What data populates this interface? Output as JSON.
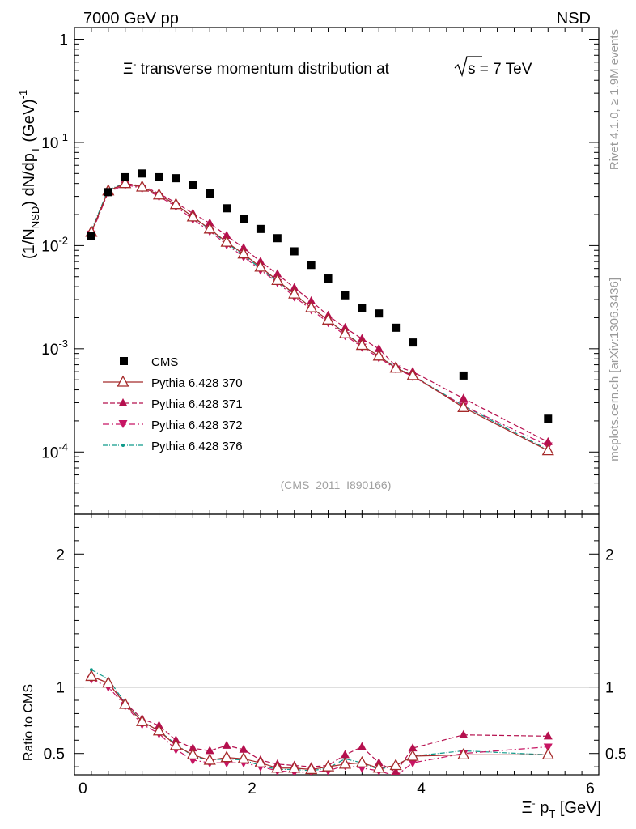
{
  "header": {
    "energy_label": "7000 GeV pp",
    "process_label": "NSD",
    "side_text_top": "Rivet 4.1.0, ≥ 1.9M events",
    "side_text_bottom": "mcplots.cern.ch [arXiv:1306.3436]"
  },
  "chart_data": {
    "type": "scatter",
    "title": {
      "part1": "Ξ",
      "part1_sup": "-",
      "part2": " transverse momentum distribution at",
      "sqrt_s": "s",
      "part3": " = 7 TeV"
    },
    "analysis_tag": "(CMS_2011_I890166)",
    "xlabel": {
      "main": "Ξ",
      "sup": "-",
      "p": " p",
      "sub": "T",
      "unit": " [GeV]"
    },
    "ylabel_main": {
      "p1": "(1/N",
      "sub1": "NSD",
      "p2": ") dN/dp",
      "sub2": "T",
      "p3": " (GeV)",
      "sup": "-1"
    },
    "ylabel_ratio": "Ratio to CMS",
    "xlim": [
      -0.1,
      6.1
    ],
    "ylim_main": [
      2.5e-05,
      1.3
    ],
    "ylim_ratio": [
      0.34,
      2.3
    ],
    "x_ticks": [
      "0",
      "2",
      "4",
      "6"
    ],
    "y_ticks_main": [
      {
        "v": 1,
        "b": "1",
        "e": ""
      },
      {
        "v": 0.1,
        "b": "10",
        "e": "-1"
      },
      {
        "v": 0.01,
        "b": "10",
        "e": "-2"
      },
      {
        "v": 0.001,
        "b": "10",
        "e": "-3"
      },
      {
        "v": 0.0001,
        "b": "10",
        "e": "-4"
      }
    ],
    "y_ticks_ratio": [
      "0.5",
      "1",
      "2"
    ],
    "series": [
      {
        "name": "CMS",
        "color": "#000000",
        "marker": "square",
        "x": [
          0.1,
          0.3,
          0.5,
          0.7,
          0.9,
          1.1,
          1.3,
          1.5,
          1.7,
          1.9,
          2.1,
          2.3,
          2.5,
          2.7,
          2.9,
          3.1,
          3.3,
          3.5,
          3.7,
          3.9,
          4.5,
          5.5
        ],
        "values": [
          0.0125,
          0.033,
          0.046,
          0.05,
          0.046,
          0.045,
          0.039,
          0.032,
          0.023,
          0.018,
          0.0145,
          0.0118,
          0.0088,
          0.0065,
          0.0048,
          0.0033,
          0.0025,
          0.0022,
          0.0016,
          0.00115,
          0.00055,
          0.00021
        ]
      },
      {
        "name": "Pythia 6.428 370",
        "color": "#a52a2a",
        "marker": "triangle-open",
        "dash": "none",
        "x": [
          0.1,
          0.3,
          0.5,
          0.7,
          0.9,
          1.1,
          1.3,
          1.5,
          1.7,
          1.9,
          2.1,
          2.3,
          2.5,
          2.7,
          2.9,
          3.1,
          3.3,
          3.5,
          3.7,
          3.9,
          4.5,
          5.5
        ],
        "values": [
          0.0135,
          0.034,
          0.04,
          0.037,
          0.031,
          0.025,
          0.019,
          0.0145,
          0.0108,
          0.0083,
          0.0062,
          0.0046,
          0.0034,
          0.0025,
          0.0019,
          0.0014,
          0.00108,
          0.00085,
          0.00065,
          0.00055,
          0.00027,
          0.000103
        ],
        "ratio": [
          1.08,
          1.03,
          0.87,
          0.74,
          0.67,
          0.56,
          0.49,
          0.45,
          0.47,
          0.46,
          0.43,
          0.39,
          0.39,
          0.38,
          0.4,
          0.42,
          0.43,
          0.39,
          0.41,
          0.48,
          0.49,
          0.49
        ]
      },
      {
        "name": "Pythia 6.428 371",
        "color": "#b5104e",
        "marker": "triangle-up",
        "dash": "6,3",
        "x": [
          0.1,
          0.3,
          0.5,
          0.7,
          0.9,
          1.1,
          1.3,
          1.5,
          1.7,
          1.9,
          2.1,
          2.3,
          2.5,
          2.7,
          2.9,
          3.1,
          3.3,
          3.5,
          3.7,
          3.9,
          4.5,
          5.5
        ],
        "values": [
          0.0135,
          0.034,
          0.04,
          0.038,
          0.032,
          0.026,
          0.0205,
          0.0165,
          0.0125,
          0.0095,
          0.007,
          0.0053,
          0.0039,
          0.0029,
          0.0021,
          0.0016,
          0.00125,
          0.001,
          0.00068,
          0.0006,
          0.00033,
          0.000125
        ],
        "ratio": [
          1.08,
          1.03,
          0.88,
          0.76,
          0.71,
          0.6,
          0.54,
          0.52,
          0.56,
          0.53,
          0.45,
          0.42,
          0.41,
          0.4,
          0.41,
          0.49,
          0.55,
          0.43,
          0.36,
          0.54,
          0.64,
          0.63
        ]
      },
      {
        "name": "Pythia 6.428 372",
        "color": "#c71563",
        "marker": "triangle-down",
        "dash": "8,3,2,3",
        "x": [
          0.1,
          0.3,
          0.5,
          0.7,
          0.9,
          1.1,
          1.3,
          1.5,
          1.7,
          1.9,
          2.1,
          2.3,
          2.5,
          2.7,
          2.9,
          3.1,
          3.3,
          3.5,
          3.7,
          3.9,
          4.5,
          5.5
        ],
        "values": [
          0.013,
          0.033,
          0.039,
          0.036,
          0.03,
          0.024,
          0.018,
          0.0138,
          0.0102,
          0.0078,
          0.0058,
          0.0044,
          0.0032,
          0.0024,
          0.0018,
          0.00135,
          0.00104,
          0.00082,
          0.00064,
          0.00054,
          0.00028,
          0.000115
        ],
        "ratio": [
          1.06,
          1.0,
          0.86,
          0.72,
          0.65,
          0.53,
          0.45,
          0.43,
          0.43,
          0.43,
          0.4,
          0.37,
          0.36,
          0.36,
          0.37,
          0.41,
          0.39,
          0.37,
          0.33,
          0.43,
          0.5,
          0.55
        ]
      },
      {
        "name": "Pythia 6.428 376",
        "color": "#0e9a8a",
        "marker": "dot",
        "dash": "6,2,1,2",
        "x": [
          0.1,
          0.3,
          0.5,
          0.7,
          0.9,
          1.1,
          1.3,
          1.5,
          1.7,
          1.9,
          2.1,
          2.3,
          2.5,
          2.7,
          2.9,
          3.1,
          3.3,
          3.5,
          3.7,
          3.9,
          4.5,
          5.5
        ],
        "values": [
          0.014,
          0.035,
          0.04,
          0.037,
          0.031,
          0.025,
          0.019,
          0.0143,
          0.0106,
          0.0081,
          0.006,
          0.0045,
          0.0034,
          0.0025,
          0.0019,
          0.00142,
          0.00108,
          0.00085,
          0.00066,
          0.00055,
          0.00028,
          0.000105
        ],
        "ratio": [
          1.13,
          1.06,
          0.88,
          0.74,
          0.67,
          0.57,
          0.48,
          0.45,
          0.46,
          0.45,
          0.41,
          0.38,
          0.38,
          0.37,
          0.39,
          0.46,
          0.43,
          0.38,
          0.41,
          0.48,
          0.52,
          0.49
        ]
      }
    ]
  }
}
